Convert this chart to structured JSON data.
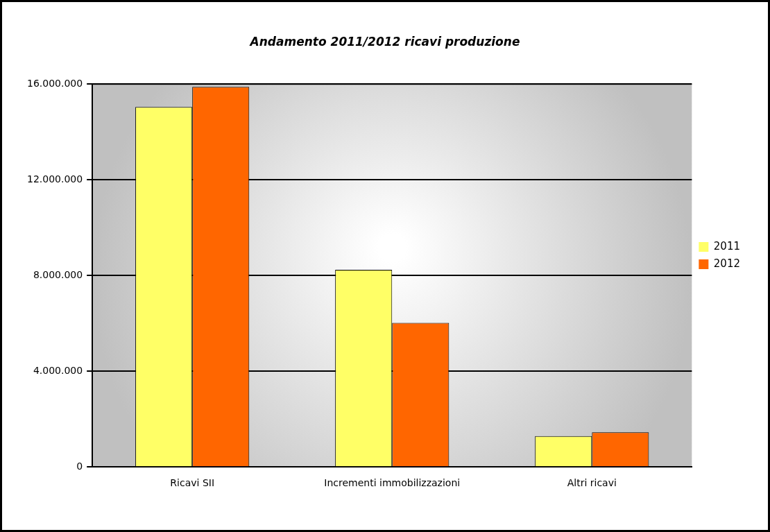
{
  "chart_data": {
    "type": "bar",
    "title": "Andamento 2011/2012 ricavi produzione",
    "categories": [
      "Ricavi SII",
      "Incrementi immobilizzazioni",
      "Altri ricavi"
    ],
    "series": [
      {
        "name": "2011",
        "color": "#ffff66",
        "values": [
          15050000,
          8240000,
          1290000
        ]
      },
      {
        "name": "2012",
        "color": "#ff6600",
        "values": [
          15890000,
          6020000,
          1450000
        ]
      }
    ],
    "ylim": [
      0,
      16000000
    ],
    "yticks": [
      {
        "value": 0,
        "label": "0"
      },
      {
        "value": 4000000,
        "label": "4.000.000"
      },
      {
        "value": 8000000,
        "label": "8.000.000"
      },
      {
        "value": 12000000,
        "label": "12.000.000"
      },
      {
        "value": 16000000,
        "label": "16.000.000"
      }
    ],
    "grid": "y",
    "legend": "right"
  }
}
